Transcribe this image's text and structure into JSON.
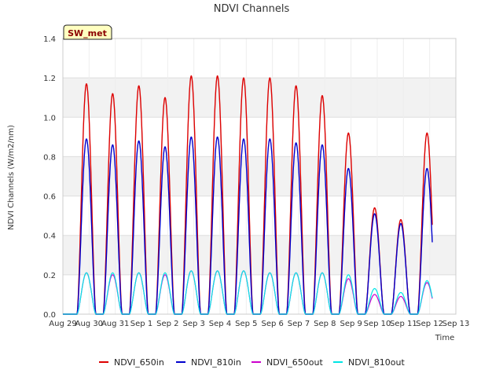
{
  "chart_data": {
    "type": "line",
    "title": "NDVI Channels",
    "ylabel": "NDVI Channels (W/m2/nm)",
    "xlabel": "Time",
    "ylim": [
      0.0,
      1.4
    ],
    "yticks": [
      "0.0",
      "0.2",
      "0.4",
      "0.6",
      "0.8",
      "1.0",
      "1.2",
      "1.4"
    ],
    "xlim": [
      0,
      15
    ],
    "xticks": [
      "Aug 29",
      "Aug 30",
      "Aug 31",
      "Sep 1",
      "Sep 2",
      "Sep 3",
      "Sep 4",
      "Sep 5",
      "Sep 6",
      "Sep 7",
      "Sep 8",
      "Sep 9",
      "Sep 10",
      "Sep 11",
      "Sep 12",
      "Sep 13"
    ],
    "site_badge": "SW_met",
    "peak_day_offsets": [
      1,
      2,
      3,
      4,
      5,
      6,
      7,
      8,
      9,
      10,
      11,
      12,
      13,
      14
    ],
    "series": [
      {
        "name": "NDVI_650in",
        "color": "#dd0000",
        "peaks": [
          1.17,
          1.12,
          1.16,
          1.1,
          1.21,
          1.21,
          1.2,
          1.2,
          1.16,
          1.11,
          0.92,
          0.54,
          0.48,
          0.92
        ]
      },
      {
        "name": "NDVI_810in",
        "color": "#0000cc",
        "peaks": [
          0.89,
          0.86,
          0.88,
          0.85,
          0.9,
          0.9,
          0.89,
          0.89,
          0.87,
          0.86,
          0.74,
          0.51,
          0.46,
          0.74
        ]
      },
      {
        "name": "NDVI_650out",
        "color": "#cc00cc",
        "peaks": [
          0.21,
          0.2,
          0.21,
          0.2,
          0.22,
          0.22,
          0.22,
          0.21,
          0.21,
          0.21,
          0.18,
          0.1,
          0.09,
          0.16
        ]
      },
      {
        "name": "NDVI_810out",
        "color": "#00e5e5",
        "peaks": [
          0.21,
          0.21,
          0.21,
          0.21,
          0.22,
          0.22,
          0.22,
          0.21,
          0.21,
          0.21,
          0.2,
          0.13,
          0.11,
          0.17
        ]
      }
    ]
  }
}
